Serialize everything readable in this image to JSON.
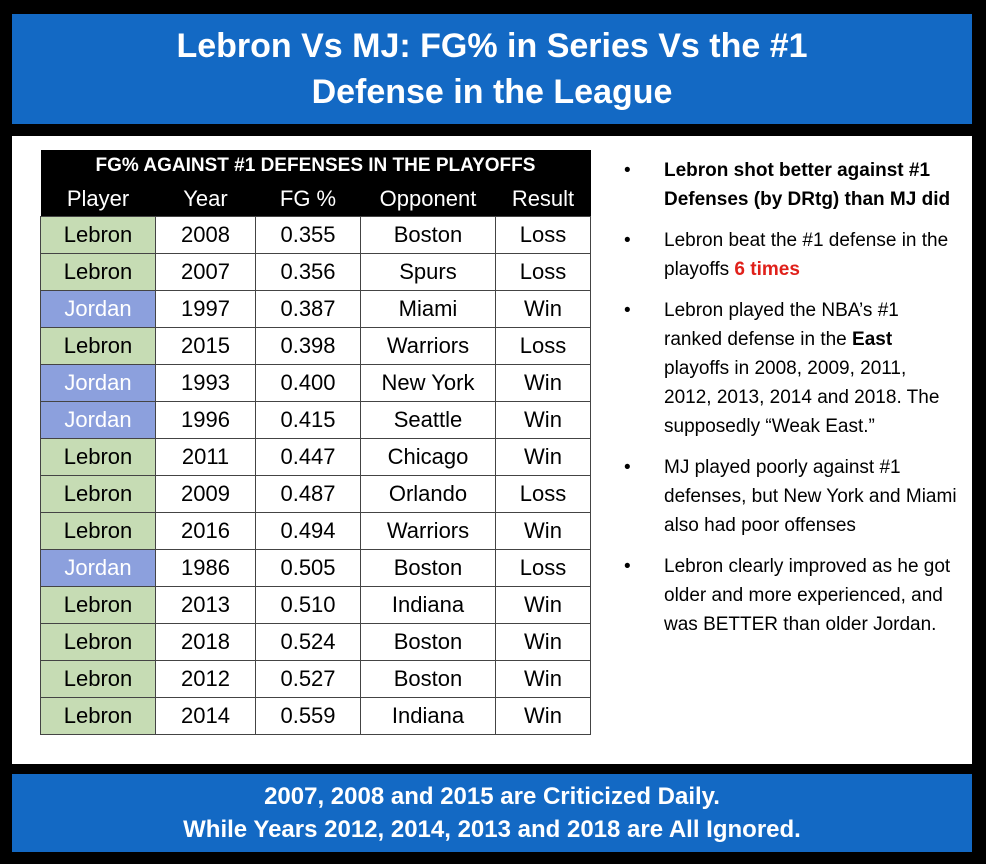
{
  "header": {
    "line1": "Lebron Vs MJ:  FG% in Series Vs the #1",
    "line2": "Defense in the League"
  },
  "table": {
    "title": "FG% AGAINST #1 DEFENSES IN THE PLAYOFFS",
    "columns": [
      "Player",
      "Year",
      "FG %",
      "Opponent",
      "Result"
    ],
    "rows": [
      [
        "Lebron",
        "2008",
        "0.355",
        "Boston",
        "Loss"
      ],
      [
        "Lebron",
        "2007",
        "0.356",
        "Spurs",
        "Loss"
      ],
      [
        "Jordan",
        "1997",
        "0.387",
        "Miami",
        "Win"
      ],
      [
        "Lebron",
        "2015",
        "0.398",
        "Warriors",
        "Loss"
      ],
      [
        "Jordan",
        "1993",
        "0.400",
        "New York",
        "Win"
      ],
      [
        "Jordan",
        "1996",
        "0.415",
        "Seattle",
        "Win"
      ],
      [
        "Lebron",
        "2011",
        "0.447",
        "Chicago",
        "Win"
      ],
      [
        "Lebron",
        "2009",
        "0.487",
        "Orlando",
        "Loss"
      ],
      [
        "Lebron",
        "2016",
        "0.494",
        "Warriors",
        "Win"
      ],
      [
        "Jordan",
        "1986",
        "0.505",
        "Boston",
        "Loss"
      ],
      [
        "Lebron",
        "2013",
        "0.510",
        "Indiana",
        "Win"
      ],
      [
        "Lebron",
        "2018",
        "0.524",
        "Boston",
        "Win"
      ],
      [
        "Lebron",
        "2012",
        "0.527",
        "Boston",
        "Win"
      ],
      [
        "Lebron",
        "2014",
        "0.559",
        "Indiana",
        "Win"
      ]
    ],
    "colors": {
      "lebron": "#c6dcb4",
      "jordan": "#8ca0dd"
    }
  },
  "notes": {
    "bullet": "•",
    "n1": "Lebron shot better against #1 Defenses (by DRtg) than MJ did",
    "n2_pre": "Lebron beat the #1 defense in the playoffs ",
    "n2_hl": "6 times",
    "n3_pre": "Lebron played the NBA’s #1 ranked defense in the ",
    "n3_bold": "East",
    "n3_post": " playoffs in 2008, 2009, 2011, 2012, 2013, 2014 and 2018. The supposedly “Weak East.”",
    "n4": "MJ played poorly against #1 defenses, but New York and Miami also had poor offenses",
    "n5": "Lebron clearly improved as he got older and more experienced, and was BETTER than older Jordan."
  },
  "footer": {
    "line1": "2007, 2008 and 2015 are Criticized Daily.",
    "line2": "While Years 2012, 2014, 2013 and 2018 are All Ignored."
  },
  "colors": {
    "blue": "#1369c4",
    "highlight_red": "#e0201a"
  }
}
